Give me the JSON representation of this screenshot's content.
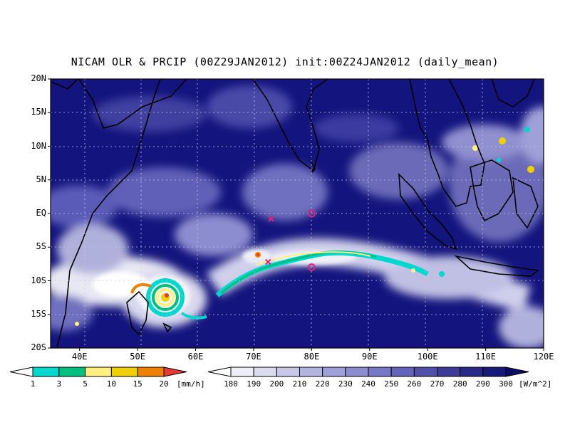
{
  "title": "NICAM OLR & PRCIP (00Z29JAN2012) init:00Z24JAN2012 (daily_mean)",
  "lat_ticks": [
    "20N",
    "15N",
    "10N",
    "5N",
    "EQ",
    "5S",
    "10S",
    "15S",
    "20S"
  ],
  "lon_ticks": [
    "40E",
    "50E",
    "60E",
    "70E",
    "80E",
    "90E",
    "100E",
    "110E",
    "120E"
  ],
  "precip_bar": {
    "labels": [
      "1",
      "3",
      "5",
      "10",
      "15",
      "20"
    ],
    "unit": "[mm/h]",
    "colors": [
      "#ffffff",
      "#00d8d0",
      "#00c080",
      "#fff080",
      "#f0d000",
      "#f08000",
      "#e83838"
    ]
  },
  "olr_bar": {
    "labels": [
      "180",
      "190",
      "200",
      "210",
      "220",
      "230",
      "240",
      "250",
      "260",
      "270",
      "280",
      "290",
      "300"
    ],
    "unit": "[W/m^2]",
    "colors": [
      "#ffffff",
      "#eeeef8",
      "#dcdcf0",
      "#c8c8e8",
      "#b4b4e0",
      "#a0a0d8",
      "#8c8cd0",
      "#7878c8",
      "#6464b8",
      "#5050a8",
      "#3c3c98",
      "#282888",
      "#181878",
      "#0c0c68"
    ]
  },
  "map_colors": {
    "background": "#14147e",
    "coastline": "#000000",
    "grid": "#c8c8e0",
    "markers": "#e0207a"
  },
  "markers": [
    {
      "type": "x",
      "lon": 73.0,
      "lat": -0.8
    },
    {
      "type": "o",
      "lon": 80.0,
      "lat": 0.0
    },
    {
      "type": "x",
      "lon": 72.5,
      "lat": -7.2
    },
    {
      "type": "o",
      "lon": 80.0,
      "lat": -8.0
    }
  ]
}
